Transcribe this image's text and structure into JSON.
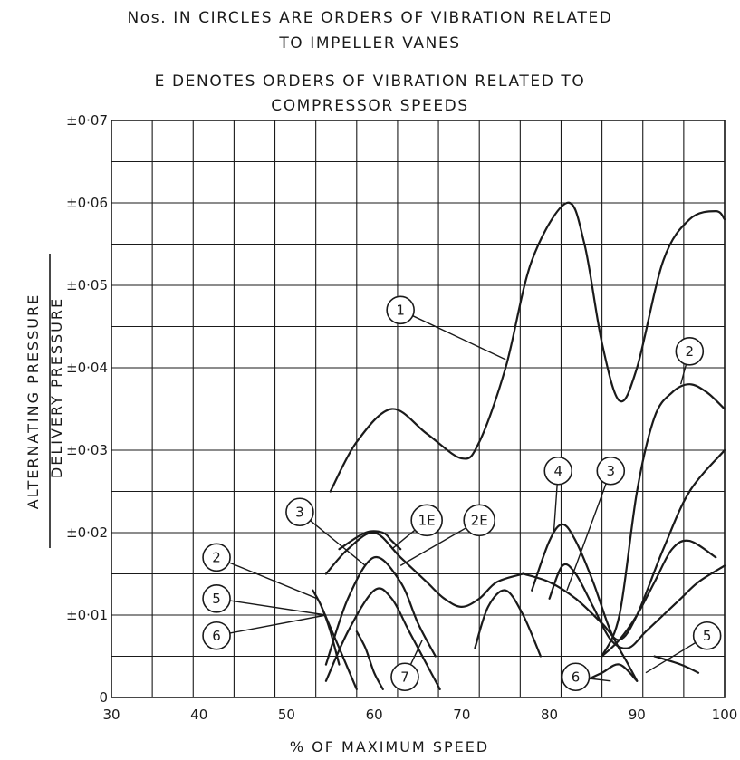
{
  "notes": {
    "line1": "Nos. IN CIRCLES ARE ORDERS OF VIBRATION RELATED",
    "line2": "TO IMPELLER VANES",
    "line3": "E DENOTES ORDERS OF VIBRATION RELATED TO",
    "line4": "COMPRESSOR SPEEDS"
  },
  "chart_data": {
    "type": "line",
    "xlabel": "% OF MAXIMUM SPEED",
    "ylabel_numerator": "ALTERNATING PRESSURE",
    "ylabel_denominator": "DELIVERY PRESSURE",
    "xlim": [
      30,
      100
    ],
    "ylim": [
      0,
      0.07
    ],
    "x_ticks": [
      "30",
      "40",
      "50",
      "60",
      "70",
      "80",
      "90",
      "100"
    ],
    "x_tick_values": [
      30,
      40,
      50,
      60,
      70,
      80,
      90,
      100
    ],
    "y_ticks": [
      "0",
      "±0·01",
      "±0·02",
      "±0·03",
      "±0·04",
      "±0·05",
      "±0·06",
      "±0·07"
    ],
    "y_tick_values": [
      0,
      0.01,
      0.02,
      0.03,
      0.04,
      0.05,
      0.06,
      0.07
    ],
    "grid": true,
    "series": [
      {
        "name": "1",
        "x": [
          55,
          58,
          62,
          66,
          70,
          72,
          75,
          78,
          82,
          84,
          86,
          88,
          90,
          93,
          96,
          99,
          100
        ],
        "y": [
          0.025,
          0.031,
          0.035,
          0.032,
          0.029,
          0.031,
          0.04,
          0.053,
          0.06,
          0.055,
          0.043,
          0.036,
          0.04,
          0.053,
          0.058,
          0.059,
          0.058
        ]
      },
      {
        "name": "2",
        "x": [
          86,
          88,
          90,
          92,
          94,
          96,
          98,
          100
        ],
        "y": [
          0.005,
          0.01,
          0.025,
          0.034,
          0.037,
          0.038,
          0.037,
          0.035
        ]
      },
      {
        "name": "2",
        "x": [
          53,
          54,
          55,
          56
        ],
        "y": [
          0.013,
          0.011,
          0.008,
          0.004
        ]
      },
      {
        "name": "3",
        "x": [
          54.5,
          57,
          60,
          63,
          66,
          68,
          70,
          72,
          74,
          77
        ],
        "y": [
          0.015,
          0.018,
          0.02,
          0.017,
          0.014,
          0.012,
          0.011,
          0.012,
          0.014,
          0.015
        ]
      },
      {
        "name": "3",
        "x": [
          77,
          80,
          83,
          86,
          88,
          90,
          93,
          96,
          100
        ],
        "y": [
          0.015,
          0.014,
          0.012,
          0.009,
          0.007,
          0.01,
          0.018,
          0.025,
          0.03
        ]
      },
      {
        "name": "1E",
        "x": [
          54.5,
          57,
          60,
          63,
          65,
          67
        ],
        "y": [
          0.004,
          0.012,
          0.017,
          0.014,
          0.009,
          0.005
        ]
      },
      {
        "name": "2E",
        "x": [
          56,
          59,
          61,
          62,
          63
        ],
        "y": [
          0.018,
          0.02,
          0.02,
          0.019,
          0.018
        ]
      },
      {
        "name": "4",
        "x": [
          78,
          80,
          81.5,
          83,
          85,
          87,
          89,
          90
        ],
        "y": [
          0.013,
          0.019,
          0.021,
          0.019,
          0.014,
          0.008,
          0.004,
          0.002
        ]
      },
      {
        "name": "5",
        "x": [
          54,
          56,
          58
        ],
        "y": [
          0.011,
          0.006,
          0.001
        ]
      },
      {
        "name": "5",
        "x": [
          86,
          88,
          90,
          92,
          94,
          96,
          99
        ],
        "y": [
          0.005,
          0.007,
          0.01,
          0.014,
          0.018,
          0.019,
          0.017
        ]
      },
      {
        "name": "6",
        "x": [
          54.5,
          57,
          60,
          62,
          64,
          66,
          67.5
        ],
        "y": [
          0.002,
          0.008,
          0.013,
          0.012,
          0.008,
          0.004,
          0.001
        ]
      },
      {
        "name": "6",
        "x": [
          84,
          86,
          88,
          90
        ],
        "y": [
          0.002,
          0.003,
          0.004,
          0.002
        ]
      },
      {
        "name": "7",
        "x": [
          58,
          59,
          60,
          61
        ],
        "y": [
          0.008,
          0.006,
          0.003,
          0.001
        ]
      },
      {
        "name": "",
        "x": [
          71.5,
          73,
          75,
          77,
          79
        ],
        "y": [
          0.006,
          0.011,
          0.013,
          0.01,
          0.005
        ]
      },
      {
        "name": "",
        "x": [
          80,
          81.5,
          83,
          85,
          87,
          89,
          91,
          93,
          95,
          97,
          100
        ],
        "y": [
          0.012,
          0.016,
          0.015,
          0.011,
          0.007,
          0.006,
          0.008,
          0.01,
          0.012,
          0.014,
          0.016
        ]
      },
      {
        "name": "",
        "x": [
          92,
          95,
          97
        ],
        "y": [
          0.005,
          0.004,
          0.003
        ]
      }
    ],
    "callouts": [
      {
        "label": "1",
        "x": 63,
        "y": 0.047,
        "to_x": 75,
        "to_y": 0.041
      },
      {
        "label": "2",
        "x": 96,
        "y": 0.042,
        "to_x": 95,
        "to_y": 0.038
      },
      {
        "label": "2",
        "x": 42,
        "y": 0.017,
        "to_x": 53.5,
        "to_y": 0.012
      },
      {
        "label": "3",
        "x": 51.5,
        "y": 0.0225,
        "to_x": 59,
        "to_y": 0.016
      },
      {
        "label": "3",
        "x": 87,
        "y": 0.0275,
        "to_x": 82,
        "to_y": 0.013
      },
      {
        "label": "1E",
        "x": 66,
        "y": 0.0215,
        "to_x": 62,
        "to_y": 0.018
      },
      {
        "label": "2E",
        "x": 72,
        "y": 0.0215,
        "to_x": 63,
        "to_y": 0.016
      },
      {
        "label": "4",
        "x": 81,
        "y": 0.0275,
        "to_x": 80.5,
        "to_y": 0.02
      },
      {
        "label": "5",
        "x": 42,
        "y": 0.012,
        "to_x": 54.5,
        "to_y": 0.01
      },
      {
        "label": "5",
        "x": 98,
        "y": 0.0075,
        "to_x": 91,
        "to_y": 0.003
      },
      {
        "label": "6",
        "x": 42,
        "y": 0.0075,
        "to_x": 54.5,
        "to_y": 0.01
      },
      {
        "label": "6",
        "x": 83,
        "y": 0.0025,
        "to_x": 87,
        "to_y": 0.002
      },
      {
        "label": "7",
        "x": 63.5,
        "y": 0.0025,
        "to_x": 65.5,
        "to_y": 0.007
      }
    ]
  }
}
